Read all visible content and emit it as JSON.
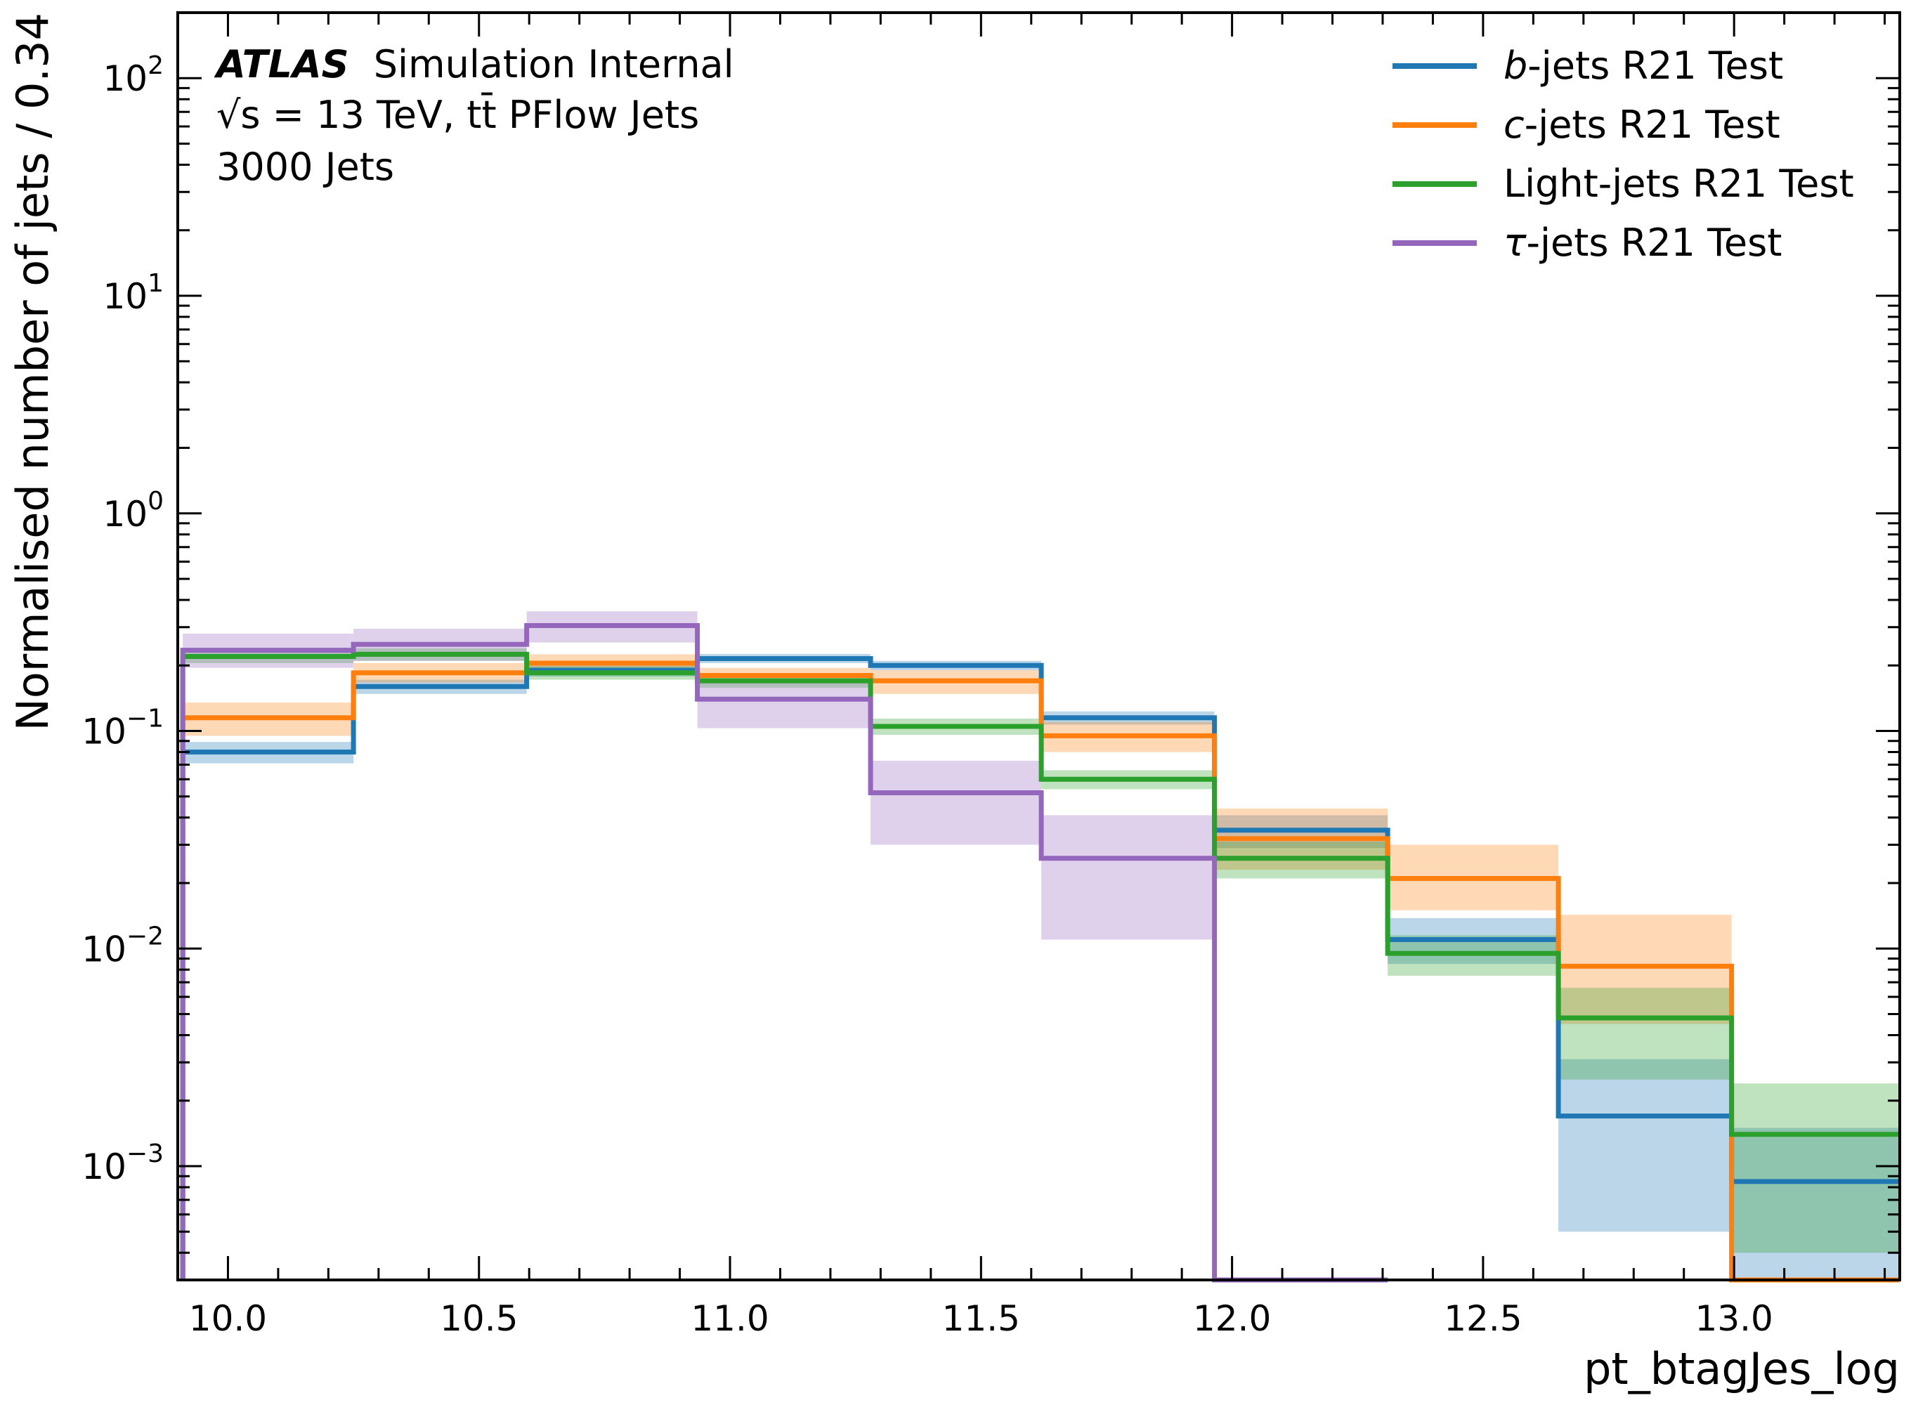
{
  "chart_data": {
    "type": "line",
    "subtype": "step-histogram",
    "annotation": {
      "experiment": "ATLAS",
      "label": "Simulation Internal",
      "line2": "√s = 13 TeV, tt̄ PFlow Jets",
      "line3": "3000 Jets"
    },
    "xlabel": "pt_btagJes_log",
    "ylabel": "Normalised number of jets / 0.34",
    "xlim": [
      9.9,
      13.33
    ],
    "ylim": [
      0.0003,
      200
    ],
    "yscale": "log",
    "x_ticks": [
      "10.0",
      "10.5",
      "11.0",
      "11.5",
      "12.0",
      "12.5",
      "13.0"
    ],
    "y_ticks": [
      {
        "base": "10",
        "exp": "−3"
      },
      {
        "base": "10",
        "exp": "−2"
      },
      {
        "base": "10",
        "exp": "−1"
      },
      {
        "base": "10",
        "exp": "0"
      },
      {
        "base": "10",
        "exp": "1"
      },
      {
        "base": "10",
        "exp": "2"
      }
    ],
    "legend_position": "top-right",
    "bin_edges": [
      9.91,
      10.25,
      10.595,
      10.935,
      11.28,
      11.62,
      11.965,
      12.31,
      12.65,
      12.995,
      13.33
    ],
    "series": [
      {
        "name": "b-jets R21 Test",
        "name_italic": "b",
        "name_rest": "-jets R21 Test",
        "color": "#1f77b4",
        "values": [
          0.08,
          0.16,
          0.19,
          0.215,
          0.2,
          0.115,
          0.035,
          0.011,
          0.0017,
          0.00085
        ],
        "lower": [
          0.071,
          0.148,
          0.178,
          0.205,
          0.19,
          0.107,
          0.029,
          0.0085,
          0.0005,
          0.0003
        ],
        "upper": [
          0.089,
          0.172,
          0.202,
          0.226,
          0.21,
          0.123,
          0.041,
          0.0138,
          0.0031,
          0.0015
        ]
      },
      {
        "name": "c-jets R21 Test",
        "name_italic": "c",
        "name_rest": "-jets R21 Test",
        "color": "#ff7f0e",
        "values": [
          0.115,
          0.185,
          0.205,
          0.18,
          0.17,
          0.095,
          0.032,
          0.021,
          0.0083,
          0.0003
        ],
        "lower": [
          0.095,
          0.167,
          0.188,
          0.165,
          0.148,
          0.08,
          0.023,
          0.015,
          0.0045,
          0.0003
        ],
        "upper": [
          0.135,
          0.205,
          0.225,
          0.195,
          0.19,
          0.11,
          0.044,
          0.03,
          0.0143,
          0.0003
        ]
      },
      {
        "name": "Light-jets R21 Test",
        "name_italic": "",
        "name_rest": "Light-jets R21 Test",
        "color": "#2ca02c",
        "values": [
          0.22,
          0.225,
          0.185,
          0.17,
          0.105,
          0.06,
          0.026,
          0.0095,
          0.0048,
          0.0014
        ],
        "lower": [
          0.205,
          0.21,
          0.172,
          0.158,
          0.096,
          0.054,
          0.021,
          0.0075,
          0.0025,
          0.0004
        ],
        "upper": [
          0.235,
          0.24,
          0.198,
          0.182,
          0.114,
          0.066,
          0.031,
          0.0115,
          0.0066,
          0.0024
        ]
      },
      {
        "name": "τ-jets R21 Test",
        "name_italic": "τ",
        "name_rest": "-jets R21 Test",
        "color": "#9467bd",
        "values": [
          0.235,
          0.25,
          0.305,
          0.14,
          0.052,
          0.026,
          0.0003,
          null,
          null,
          null
        ],
        "lower": [
          0.195,
          0.21,
          0.255,
          0.103,
          0.03,
          0.011,
          null,
          null,
          null,
          null
        ],
        "upper": [
          0.28,
          0.295,
          0.355,
          0.17,
          0.073,
          0.041,
          null,
          null,
          null,
          null
        ]
      }
    ]
  }
}
